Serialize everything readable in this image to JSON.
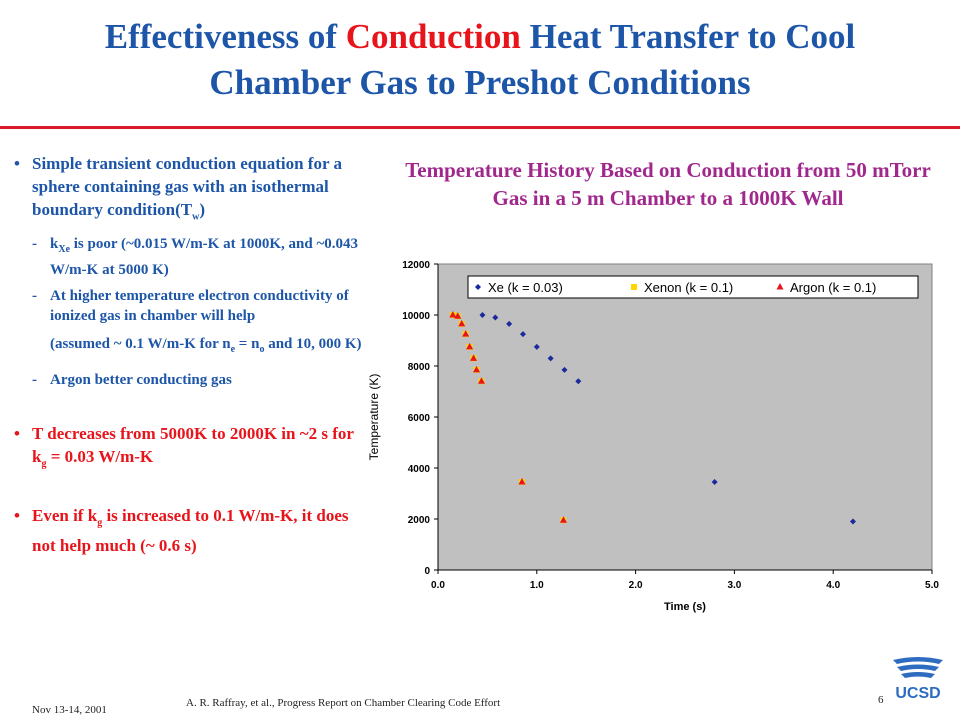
{
  "title": {
    "line1_pre": "Effectiveness of ",
    "line1_highlight": "Conduction",
    "line1_post": " Heat Transfer to Cool",
    "line2": "Chamber Gas to Preshot Conditions"
  },
  "bullets": {
    "b1_text": "Simple transient conduction equation for a sphere containing gas with an isothermal boundary condition(T",
    "b1_sub": "w",
    "b1_end": ")",
    "s1_k": "k",
    "s1_sub": "Xe",
    "s1_text": " is poor (~0.015 W/m-K at 1000K, and ~0.043 W/m-K at 5000 K)",
    "s2_text": "At higher temperature electron conductivity of ionized gas in chamber will help",
    "s2_cont_pre": "(assumed ~ 0.1 W/m-K for n",
    "s2_cont_sub1": "e",
    "s2_cont_mid": " = n",
    "s2_cont_sub2": "o",
    "s2_cont_end": " and 10, 000 K)",
    "s3_text": "Argon better conducting gas",
    "b2_pre": "T decreases from 5000K to 2000K in ~2 s for k",
    "b2_sub": "g",
    "b2_end": " = 0.03 W/m-K",
    "b3_pre": "Even if k",
    "b3_sub": "g",
    "b3_end": " is increased to 0.1 W/m-K, it does not help much (~ 0.6 s)"
  },
  "chart_title": "Temperature History Based on Conduction from 50 mTorr Gas in a 5 m Chamber to a 1000K Wall",
  "chart_data": {
    "type": "scatter",
    "xlabel": "Time (s)",
    "ylabel": "Temperature (K)",
    "xlim": [
      0,
      5
    ],
    "ylim": [
      0,
      12000
    ],
    "x_ticks": [
      "0.0",
      "1.0",
      "2.0",
      "3.0",
      "4.0",
      "5.0"
    ],
    "y_ticks": [
      "0",
      "2000",
      "4000",
      "6000",
      "8000",
      "10000",
      "12000"
    ],
    "grid": false,
    "legend_position": "top",
    "plot_background": "#c0c0c0",
    "series": [
      {
        "name": "Xe (k = 0.03)",
        "color": "#1a2a9c",
        "marker": "diamond",
        "points": [
          [
            0.45,
            10000
          ],
          [
            0.58,
            9900
          ],
          [
            0.72,
            9650
          ],
          [
            0.86,
            9250
          ],
          [
            1.0,
            8750
          ],
          [
            1.14,
            8300
          ],
          [
            1.28,
            7850
          ],
          [
            1.42,
            7400
          ],
          [
            2.8,
            3450
          ],
          [
            4.2,
            1900
          ]
        ]
      },
      {
        "name": "Xenon (k = 0.1)",
        "color": "#ffd700",
        "marker": "square",
        "points": [
          [
            0.15,
            10000
          ],
          [
            0.2,
            9950
          ],
          [
            0.24,
            9650
          ],
          [
            0.28,
            9250
          ],
          [
            0.32,
            8750
          ],
          [
            0.36,
            8300
          ],
          [
            0.39,
            7850
          ],
          [
            0.44,
            7400
          ],
          [
            0.85,
            3450
          ],
          [
            1.27,
            1950
          ]
        ]
      },
      {
        "name": "Argon (k = 0.1)",
        "color": "#e8141b",
        "marker": "triangle",
        "points": [
          [
            0.15,
            10000
          ],
          [
            0.2,
            9950
          ],
          [
            0.24,
            9650
          ],
          [
            0.28,
            9250
          ],
          [
            0.32,
            8750
          ],
          [
            0.36,
            8300
          ],
          [
            0.39,
            7850
          ],
          [
            0.44,
            7400
          ],
          [
            0.85,
            3450
          ],
          [
            1.27,
            1950
          ]
        ]
      }
    ]
  },
  "footer": {
    "date": "Nov 13-14, 2001",
    "citation": "A. R. Raffray, et al., Progress Report on Chamber Clearing Code Effort",
    "page": "6",
    "logo_text": "UCSD"
  }
}
